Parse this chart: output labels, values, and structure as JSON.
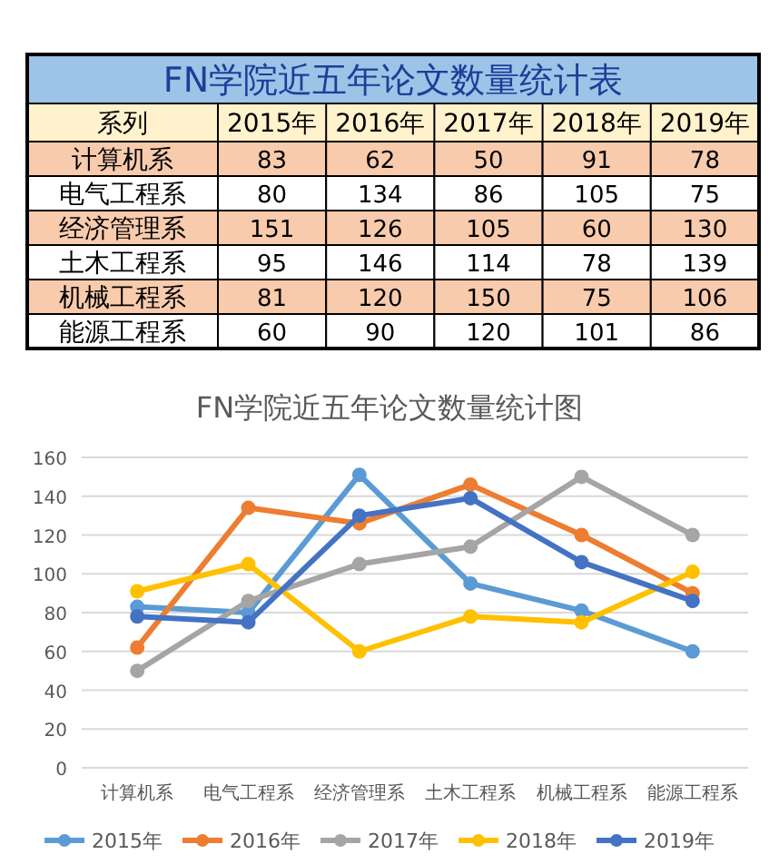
{
  "chart_data": [
    {
      "type": "heatmap",
      "title": "FN学院近五年论文数量统计表",
      "annotations": [
        "系列"
      ],
      "data_labels": true,
      "categories": [
        "2015年",
        "2016年",
        "2017年",
        "2018年",
        "2019年"
      ],
      "y_categories": [
        "计算机系",
        "电气工程系",
        "经济管理系",
        "土木工程系",
        "机械工程系",
        "能源工程系"
      ],
      "cells": [
        [
          83,
          62,
          50,
          91,
          78
        ],
        [
          80,
          134,
          86,
          105,
          75
        ],
        [
          151,
          126,
          105,
          60,
          130
        ],
        [
          95,
          146,
          114,
          78,
          139
        ],
        [
          81,
          120,
          150,
          75,
          106
        ],
        [
          60,
          90,
          120,
          101,
          86
        ]
      ]
    },
    {
      "type": "line",
      "title": "FN学院近五年论文数量统计图",
      "categories": [
        "计算机系",
        "电气工程系",
        "经济管理系",
        "土木工程系",
        "机械工程系",
        "能源工程系"
      ],
      "series": [
        {
          "name": "2015年",
          "color": "#5b9bd5",
          "values": [
            83,
            80,
            151,
            95,
            81,
            60
          ]
        },
        {
          "name": "2016年",
          "color": "#ed7d31",
          "values": [
            62,
            134,
            126,
            146,
            120,
            90
          ]
        },
        {
          "name": "2017年",
          "color": "#a5a5a5",
          "values": [
            50,
            86,
            105,
            114,
            150,
            120
          ]
        },
        {
          "name": "2018年",
          "color": "#ffc000",
          "values": [
            91,
            105,
            60,
            78,
            75,
            101
          ]
        },
        {
          "name": "2019年",
          "color": "#4472c4",
          "values": [
            78,
            75,
            130,
            139,
            106,
            86
          ]
        }
      ],
      "ylim": [
        0,
        160
      ],
      "yticks": [
        0,
        20,
        40,
        60,
        80,
        100,
        120,
        140,
        160
      ],
      "grid": "y",
      "legend": "bottom",
      "marker": "circle",
      "line_style": "solid"
    }
  ]
}
